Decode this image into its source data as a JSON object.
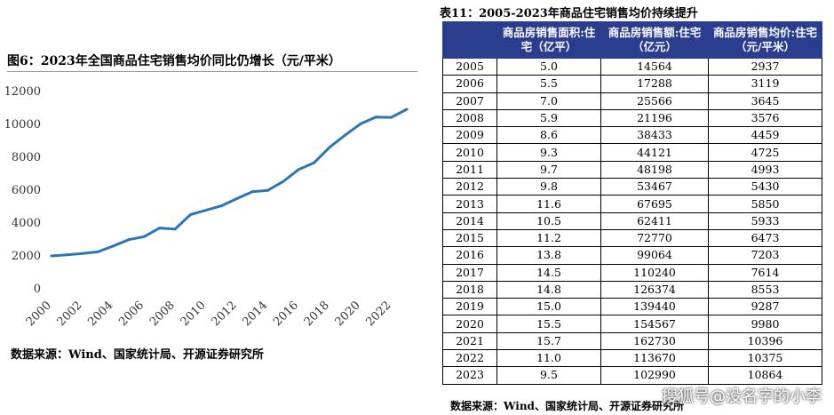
{
  "figure": {
    "title": "图6：2023年全国商品住宅销售均价同比仍增长（元/平米）",
    "source": "数据来源：Wind、国家统计局、开源证券研究所"
  },
  "chart_data": {
    "type": "line",
    "title": "图6：2023年全国商品住宅销售均价同比仍增长（元/平米）",
    "xlabel": "",
    "ylabel": "",
    "ylim": [
      0,
      12000
    ],
    "yticks": [
      0,
      2000,
      4000,
      6000,
      8000,
      10000,
      12000
    ],
    "xticks": [
      2000,
      2002,
      2004,
      2006,
      2008,
      2010,
      2012,
      2014,
      2016,
      2018,
      2020,
      2022
    ],
    "xlim": [
      2000,
      2023
    ],
    "grid": false,
    "legend": "none",
    "color": "#2e75b6",
    "x": [
      2000,
      2001,
      2002,
      2003,
      2004,
      2005,
      2006,
      2007,
      2008,
      2009,
      2010,
      2011,
      2012,
      2013,
      2014,
      2015,
      2016,
      2017,
      2018,
      2019,
      2020,
      2021,
      2022,
      2023
    ],
    "values": [
      1948,
      2017,
      2092,
      2197,
      2549,
      2937,
      3119,
      3645,
      3576,
      4459,
      4725,
      4993,
      5430,
      5850,
      5933,
      6473,
      7203,
      7614,
      8553,
      9287,
      9980,
      10396,
      10375,
      10864
    ]
  },
  "table": {
    "title": "表11：2005-2023年商品住宅销售均价持续提升",
    "headers": [
      "",
      "商品房销售面积:住宅（亿平）",
      "商品房销售额:住宅（亿元）",
      "商品房销售均价:住宅（元/平米）"
    ],
    "rows": [
      [
        "2005",
        "5.0",
        "14564",
        "2937"
      ],
      [
        "2006",
        "5.5",
        "17288",
        "3119"
      ],
      [
        "2007",
        "7.0",
        "25566",
        "3645"
      ],
      [
        "2008",
        "5.9",
        "21196",
        "3576"
      ],
      [
        "2009",
        "8.6",
        "38433",
        "4459"
      ],
      [
        "2010",
        "9.3",
        "44121",
        "4725"
      ],
      [
        "2011",
        "9.7",
        "48198",
        "4993"
      ],
      [
        "2012",
        "9.8",
        "53467",
        "5430"
      ],
      [
        "2013",
        "11.6",
        "67695",
        "5850"
      ],
      [
        "2014",
        "10.5",
        "62411",
        "5933"
      ],
      [
        "2015",
        "11.2",
        "72770",
        "6473"
      ],
      [
        "2016",
        "13.8",
        "99064",
        "7203"
      ],
      [
        "2017",
        "14.5",
        "110240",
        "7614"
      ],
      [
        "2018",
        "14.8",
        "126374",
        "8553"
      ],
      [
        "2019",
        "15.0",
        "139440",
        "9287"
      ],
      [
        "2020",
        "15.5",
        "154567",
        "9980"
      ],
      [
        "2021",
        "15.7",
        "162730",
        "10396"
      ],
      [
        "2022",
        "11.0",
        "113670",
        "10375"
      ],
      [
        "2023",
        "9.5",
        "102990",
        "10864"
      ]
    ],
    "source": "数据来源：Wind、国家统计局、开源证券研究所"
  },
  "watermark": "搜狐号@没名字的小李"
}
